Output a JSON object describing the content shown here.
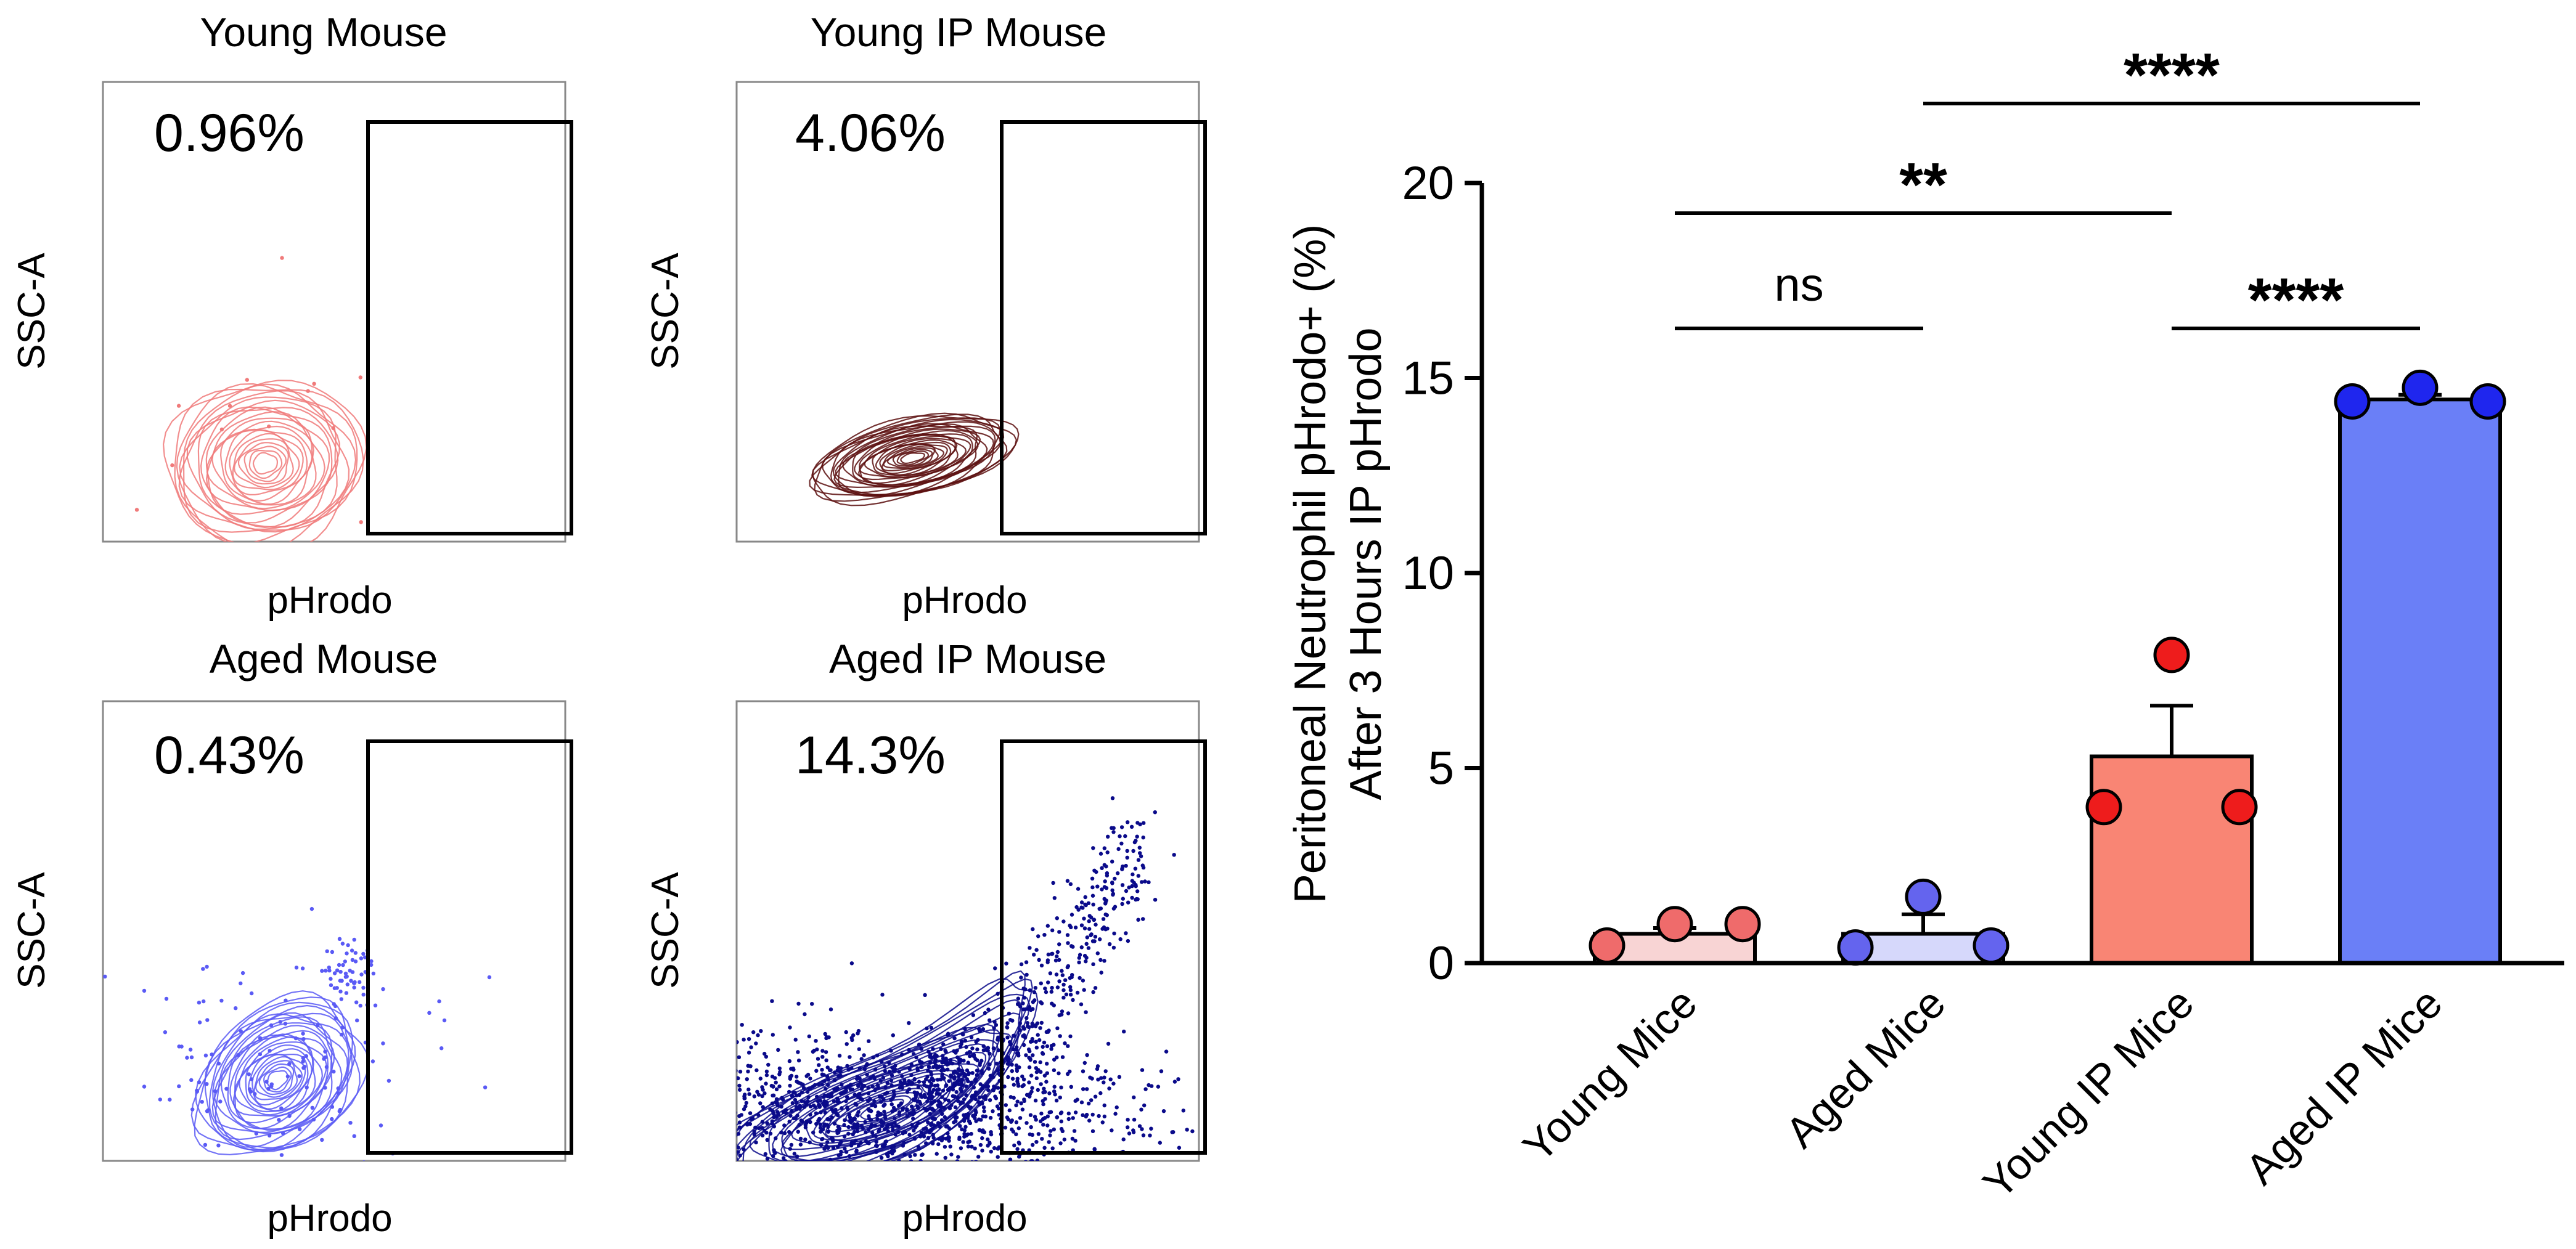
{
  "flow_panels": [
    {
      "title": "Young Mouse",
      "percent": "0.96%",
      "xlabel": "pHrodo",
      "ylabel": "SSC-A",
      "color": "#f07a7a",
      "style": "pink-contours"
    },
    {
      "title": "Young IP Mouse",
      "percent": "4.06%",
      "xlabel": "pHrodo",
      "ylabel": "SSC-A",
      "color": "#5c0f0f",
      "style": "dark-contours"
    },
    {
      "title": "Aged Mouse",
      "percent": "0.43%",
      "xlabel": "pHrodo",
      "ylabel": "SSC-A",
      "color": "#5a5af5",
      "style": "blue-contours"
    },
    {
      "title": "Aged IP Mouse",
      "percent": "14.3%",
      "xlabel": "pHrodo",
      "ylabel": "SSC-A",
      "color": "#0a0a8a",
      "style": "navy-contours"
    }
  ],
  "chart_data": {
    "type": "bar",
    "categories": [
      "Young Mice",
      "Aged Mice",
      "Young IP Mice",
      "Aged IP Mice"
    ],
    "values": [
      0.75,
      0.75,
      5.3,
      14.45
    ],
    "errors": [
      0.15,
      0.5,
      1.3,
      0.12
    ],
    "points": [
      [
        0.45,
        1.0,
        1.0
      ],
      [
        0.4,
        1.7,
        0.45
      ],
      [
        4.0,
        7.9,
        4.0
      ],
      [
        14.4,
        14.75,
        14.4
      ]
    ],
    "bar_colors": [
      "#f8d4d4",
      "#d6d8fb",
      "#f98574",
      "#6a7ff7"
    ],
    "point_colors": [
      "#ef6b6b",
      "#6464ee",
      "#ee1c1c",
      "#1f26ee"
    ],
    "ylabel_line1": "Peritoneal Neutrophil pHrodo+ (%)",
    "ylabel_line2": "After 3 Hours IP pHrodo",
    "ylim": [
      0,
      20
    ],
    "yticks": [
      "0",
      "5",
      "10",
      "15",
      "20"
    ],
    "comparisons": [
      {
        "from": 0,
        "to": 1,
        "label": "ns"
      },
      {
        "from": 2,
        "to": 3,
        "label": "****"
      },
      {
        "from": 0,
        "to": 2,
        "label": "**"
      },
      {
        "from": 1,
        "to": 3,
        "label": "****"
      }
    ]
  }
}
